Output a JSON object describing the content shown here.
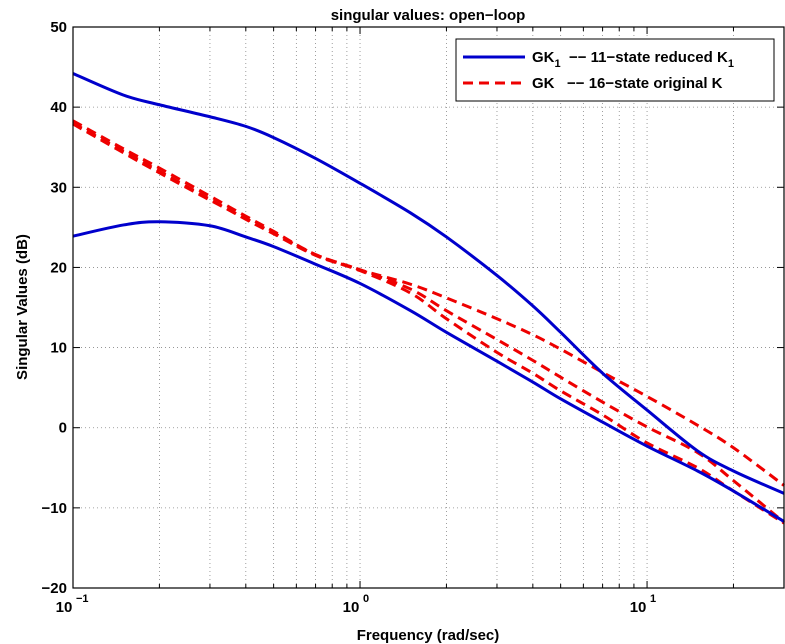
{
  "chart_data": {
    "type": "line",
    "title": "singular values: open−loop",
    "xlabel": "Frequency (rad/sec)",
    "ylabel": "Singular Values (dB)",
    "xscale": "log",
    "xlim": [
      0.1,
      30
    ],
    "ylim": [
      -20,
      50
    ],
    "yticks": [
      -20,
      -10,
      0,
      10,
      20,
      30,
      40,
      50
    ],
    "yticklabels": [
      "−20",
      "−10",
      "0",
      "10",
      "20",
      "30",
      "40",
      "50"
    ],
    "xticks": [
      {
        "value": 0.1,
        "base": "10",
        "exp": "−1"
      },
      {
        "value": 1,
        "base": "10",
        "exp": "0"
      },
      {
        "value": 10,
        "base": "10",
        "exp": "1"
      }
    ],
    "grid": true,
    "legend": {
      "placement": "top-right",
      "entries": [
        {
          "series": 0,
          "main": "GK",
          "sub": "1",
          "desc": "  −− 11−state reduced K",
          "desc_sub": "1"
        },
        {
          "series": 2,
          "main": "GK",
          "sub": "",
          "desc": "   −− 16−state original K",
          "desc_sub": ""
        }
      ]
    },
    "series": [
      {
        "color": "#0000cc",
        "style": "solid",
        "x": [
          0.1,
          0.15,
          0.2,
          0.3,
          0.4,
          0.5,
          0.7,
          1.0,
          1.5,
          2.0,
          3.0,
          4.0,
          5.0,
          7.0,
          10.0,
          15.0,
          20.0,
          30.0
        ],
        "y": [
          44.2,
          41.5,
          40.3,
          38.8,
          37.6,
          36.2,
          33.6,
          30.5,
          26.8,
          23.8,
          19.0,
          15.2,
          11.9,
          6.8,
          2.2,
          -2.9,
          -5.4,
          -8.2
        ]
      },
      {
        "color": "#0000cc",
        "style": "solid",
        "x": [
          0.1,
          0.15,
          0.2,
          0.3,
          0.4,
          0.5,
          0.7,
          1.0,
          1.5,
          2.0,
          3.0,
          4.0,
          5.0,
          7.0,
          10.0,
          15.0,
          20.0,
          30.0
        ],
        "y": [
          23.9,
          25.3,
          25.7,
          25.2,
          23.8,
          22.6,
          20.4,
          18.0,
          14.6,
          11.9,
          8.3,
          5.7,
          3.6,
          0.7,
          -2.3,
          -5.4,
          -7.9,
          -11.7
        ]
      },
      {
        "color": "#ee0000",
        "style": "dashed",
        "x": [
          0.1,
          0.15,
          0.2,
          0.3,
          0.4,
          0.5,
          0.7,
          1.0,
          1.5,
          2.0,
          3.0,
          4.0,
          5.0,
          7.0,
          10.0,
          15.0,
          20.0,
          30.0
        ],
        "y": [
          38.3,
          34.8,
          32.4,
          28.9,
          26.4,
          24.5,
          21.6,
          19.7,
          17.9,
          16.2,
          13.6,
          11.6,
          9.8,
          6.9,
          3.9,
          0.3,
          -2.5,
          -7.2
        ]
      },
      {
        "color": "#ee0000",
        "style": "dashed",
        "x": [
          0.1,
          0.15,
          0.2,
          0.3,
          0.4,
          0.5,
          0.7,
          1.0,
          1.5,
          2.0,
          3.0,
          4.0,
          5.0,
          7.0,
          10.0,
          15.0,
          20.0,
          30.0
        ],
        "y": [
          37.9,
          34.3,
          31.8,
          28.4,
          26.1,
          24.3,
          21.6,
          19.7,
          17.3,
          14.6,
          11.0,
          8.4,
          6.3,
          3.2,
          0.1,
          -3.1,
          -6.6,
          -11.8
        ]
      },
      {
        "color": "#ee0000",
        "style": "dashed",
        "x": [
          0.1,
          0.15,
          0.2,
          0.3,
          0.4,
          0.5,
          0.7,
          1.0,
          1.5,
          2.0,
          3.0,
          4.0,
          5.0,
          7.0,
          10.0,
          15.0,
          20.0,
          30.0
        ],
        "y": [
          38.0,
          34.5,
          32.0,
          28.5,
          26.0,
          24.2,
          21.5,
          19.6,
          16.8,
          13.6,
          9.4,
          6.8,
          4.6,
          1.6,
          -1.9,
          -5.0,
          -7.9,
          -11.9
        ]
      }
    ]
  }
}
